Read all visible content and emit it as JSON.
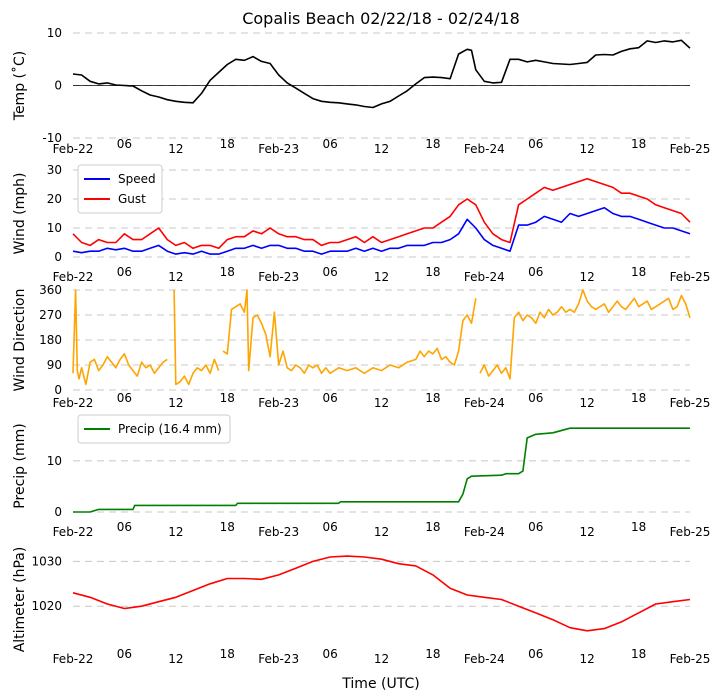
{
  "chart_data": [
    {
      "type": "line",
      "title": "Copalis Beach 02/22/18 - 02/24/18",
      "ylabel": "Temp ($^\\circ$C)",
      "ylabel_display": "Temp (˚C)",
      "ylim": [
        -10,
        10
      ],
      "yticks": [
        -10,
        0,
        10
      ],
      "xlim_hours": [
        0,
        72
      ],
      "xtick_labels": [
        "Feb-22",
        "06",
        "12",
        "18",
        "Feb-23",
        "06",
        "12",
        "18",
        "Feb-24",
        "06",
        "12",
        "18",
        "Feb-25"
      ],
      "zero_line": true,
      "series": [
        {
          "name": "Temp",
          "color": "#000000",
          "x": [
            0,
            1,
            2,
            3,
            4,
            5,
            6,
            7,
            8,
            9,
            10,
            11,
            12,
            13,
            14,
            15,
            16,
            17,
            18,
            19,
            20,
            21,
            22,
            23,
            24,
            25,
            26,
            27,
            28,
            29,
            30,
            31,
            32,
            33,
            34,
            35,
            36,
            37,
            38,
            39,
            40,
            41,
            42,
            43,
            44,
            45,
            46,
            46.5,
            47,
            48,
            49,
            50,
            51,
            52,
            53,
            54,
            55,
            56,
            57,
            58,
            59,
            60,
            61,
            62,
            63,
            64,
            65,
            66,
            67,
            68,
            69,
            70,
            71,
            72
          ],
          "values": [
            2.2,
            2,
            0.8,
            0.3,
            0.5,
            0.1,
            0,
            -0.1,
            -1,
            -1.8,
            -2.2,
            -2.7,
            -3,
            -3.2,
            -3.3,
            -1.5,
            1,
            2.5,
            4,
            5,
            4.8,
            5.5,
            4.6,
            4.2,
            2,
            0.5,
            -0.5,
            -1.5,
            -2.5,
            -3,
            -3.2,
            -3.3,
            -3.5,
            -3.7,
            -4,
            -4.2,
            -3.5,
            -3,
            -2,
            -1,
            0.3,
            1.5,
            1.6,
            1.5,
            1.3,
            6,
            6.9,
            6.7,
            3,
            0.8,
            0.5,
            0.6,
            5,
            5,
            4.5,
            4.8,
            4.5,
            4.2,
            4.1,
            4,
            4.2,
            4.4,
            5.8,
            5.9,
            5.8,
            6.5,
            7,
            7.2,
            8.5,
            8.2,
            8.5,
            8.3,
            8.6,
            7.1
          ]
        }
      ]
    },
    {
      "type": "line",
      "ylabel": "Wind (mph)",
      "ylim": [
        0,
        30
      ],
      "yticks": [
        0,
        10,
        20,
        30
      ],
      "xlim_hours": [
        0,
        72
      ],
      "xtick_labels": [
        "Feb-22",
        "06",
        "12",
        "18",
        "Feb-23",
        "06",
        "12",
        "18",
        "Feb-24",
        "06",
        "12",
        "18",
        "Feb-25"
      ],
      "legend": "top-left",
      "series": [
        {
          "name": "Speed",
          "color": "#0000ff",
          "x": [
            0,
            1,
            2,
            3,
            4,
            5,
            6,
            7,
            8,
            9,
            10,
            11,
            12,
            13,
            14,
            15,
            16,
            17,
            18,
            19,
            20,
            21,
            22,
            23,
            24,
            25,
            26,
            27,
            28,
            29,
            30,
            31,
            32,
            33,
            34,
            35,
            36,
            37,
            38,
            39,
            40,
            41,
            42,
            43,
            44,
            45,
            46,
            47,
            48,
            49,
            50,
            51,
            52,
            53,
            54,
            55,
            56,
            57,
            58,
            59,
            60,
            61,
            62,
            63,
            64,
            65,
            66,
            67,
            68,
            69,
            70,
            71,
            72
          ],
          "values": [
            2,
            1.5,
            2,
            2,
            3,
            2.5,
            3,
            2,
            2,
            3,
            4,
            2,
            1,
            1.5,
            1,
            2,
            1,
            1,
            2,
            3,
            3,
            4,
            3,
            4,
            4,
            3,
            3,
            2,
            2,
            1,
            2,
            2,
            2,
            3,
            2,
            3,
            2,
            3,
            3,
            4,
            4,
            4,
            5,
            5,
            6,
            8,
            13,
            10,
            6,
            4,
            3,
            2,
            11,
            11,
            12,
            14,
            13,
            12,
            15,
            14,
            15,
            16,
            17,
            15,
            14,
            14,
            13,
            12,
            11,
            10,
            10,
            9,
            8
          ]
        },
        {
          "name": "Gust",
          "color": "#ff0000",
          "x": [
            0,
            1,
            2,
            3,
            4,
            5,
            6,
            7,
            8,
            9,
            10,
            11,
            12,
            13,
            14,
            15,
            16,
            17,
            18,
            19,
            20,
            21,
            22,
            23,
            24,
            25,
            26,
            27,
            28,
            29,
            30,
            31,
            32,
            33,
            34,
            35,
            36,
            37,
            38,
            39,
            40,
            41,
            42,
            43,
            44,
            45,
            46,
            47,
            48,
            49,
            50,
            51,
            52,
            53,
            54,
            55,
            56,
            57,
            58,
            59,
            60,
            61,
            62,
            63,
            64,
            65,
            66,
            67,
            68,
            69,
            70,
            71,
            72
          ],
          "values": [
            8,
            5,
            4,
            6,
            5,
            5,
            8,
            6,
            6,
            8,
            10,
            6,
            4,
            5,
            3,
            4,
            4,
            3,
            6,
            7,
            7,
            9,
            8,
            10,
            8,
            7,
            7,
            6,
            6,
            4,
            5,
            5,
            6,
            7,
            5,
            7,
            5,
            6,
            7,
            8,
            9,
            10,
            10,
            12,
            14,
            18,
            20,
            18,
            12,
            8,
            6,
            5,
            18,
            20,
            22,
            24,
            23,
            24,
            25,
            26,
            27,
            26,
            25,
            24,
            22,
            22,
            21,
            20,
            18,
            17,
            16,
            15,
            12
          ]
        }
      ]
    },
    {
      "type": "line",
      "ylabel": "Wind Direction",
      "ylim": [
        0,
        360
      ],
      "yticks": [
        0,
        90,
        180,
        270,
        360
      ],
      "xlim_hours": [
        0,
        72
      ],
      "xtick_labels": [
        "Feb-22",
        "06",
        "12",
        "18",
        "Feb-23",
        "06",
        "12",
        "18",
        "Feb-24",
        "06",
        "12",
        "18",
        "Feb-25"
      ],
      "series": [
        {
          "name": "Wind Direction",
          "color": "#ffa500",
          "segments": [
            {
              "x": [
                0,
                0.3,
                0.5,
                0.7,
                1,
                1.5,
                2,
                2.5,
                3,
                3.5,
                4,
                4.5,
                5,
                5.5,
                6,
                6.5,
                7,
                7.5,
                8,
                8.5,
                9,
                9.5,
                10,
                10.5,
                11
              ],
              "values": [
                60,
                360,
                70,
                40,
                80,
                20,
                100,
                110,
                70,
                90,
                120,
                100,
                80,
                110,
                130,
                90,
                70,
                50,
                100,
                80,
                90,
                60,
                80,
                100,
                110
              ]
            },
            {
              "x": [
                11.8,
                12,
                12.5,
                13,
                13.5,
                14,
                14.5,
                15,
                15.5,
                16,
                16.5,
                17
              ],
              "values": [
                360,
                20,
                30,
                50,
                20,
                60,
                80,
                70,
                90,
                60,
                110,
                70
              ]
            },
            {
              "x": [
                17.5,
                18,
                18.5,
                19,
                19.5,
                20,
                20.3,
                20.5,
                21,
                21.5,
                22,
                22.5,
                23,
                23.5,
                24,
                24.5,
                25,
                25.5,
                26,
                26.5,
                27,
                27.5,
                28,
                28.5,
                29,
                29.5,
                30,
                30.5,
                31,
                32,
                33,
                34,
                35,
                36,
                37,
                38,
                39,
                40,
                40.5,
                41,
                41.5,
                42,
                42.5,
                43,
                43.5,
                44,
                44.5,
                45,
                45.5,
                46,
                46.5,
                47
              ],
              "values": [
                140,
                130,
                290,
                300,
                310,
                280,
                360,
                70,
                260,
                270,
                240,
                200,
                120,
                280,
                90,
                140,
                80,
                70,
                90,
                80,
                60,
                90,
                80,
                90,
                60,
                80,
                60,
                70,
                80,
                70,
                80,
                60,
                80,
                70,
                90,
                80,
                100,
                110,
                140,
                120,
                140,
                130,
                150,
                110,
                120,
                100,
                90,
                140,
                250,
                270,
                240,
                330
              ]
            },
            {
              "x": [
                47.5,
                48,
                48.5,
                49,
                49.5,
                50,
                50.5,
                51,
                51.5,
                52,
                52.5,
                53,
                53.5,
                54,
                54.5,
                55,
                55.5,
                56,
                56.5,
                57,
                57.5,
                58,
                58.5,
                59,
                59.5,
                60,
                60.5,
                61,
                61.5,
                62,
                62.5,
                63,
                63.5,
                64,
                64.5,
                65,
                65.5,
                66,
                66.5,
                67,
                67.5,
                68,
                68.5,
                69,
                69.5,
                70,
                70.5,
                71,
                71.5,
                72
              ],
              "values": [
                60,
                90,
                50,
                70,
                90,
                60,
                80,
                40,
                260,
                280,
                250,
                270,
                260,
                240,
                280,
                260,
                290,
                270,
                280,
                300,
                280,
                290,
                280,
                310,
                360,
                320,
                300,
                290,
                300,
                310,
                280,
                300,
                320,
                300,
                290,
                310,
                330,
                300,
                310,
                320,
                290,
                300,
                310,
                320,
                330,
                290,
                300,
                340,
                310,
                260
              ]
            }
          ]
        }
      ]
    },
    {
      "type": "line",
      "ylabel": "Precip (mm)",
      "ylim": [
        0,
        18
      ],
      "yticks": [
        0,
        10
      ],
      "xlim_hours": [
        0,
        72
      ],
      "xtick_labels": [
        "Feb-22",
        "06",
        "12",
        "18",
        "Feb-23",
        "06",
        "12",
        "18",
        "Feb-24",
        "06",
        "12",
        "18",
        "Feb-25"
      ],
      "legend": "top-left",
      "series": [
        {
          "name": "Precip (16.4 mm)",
          "color": "#008000",
          "x": [
            0,
            2,
            3,
            7,
            7.2,
            19,
            19.2,
            31,
            31.2,
            45,
            45.5,
            46,
            46.5,
            50,
            50.5,
            52,
            52.5,
            53,
            54,
            56,
            58,
            72
          ],
          "values": [
            0,
            0,
            0.5,
            0.5,
            1.3,
            1.3,
            1.7,
            1.7,
            2,
            2,
            3.5,
            6.5,
            7,
            7.2,
            7.5,
            7.5,
            8,
            14.5,
            15.2,
            15.5,
            16.4,
            16.4
          ]
        }
      ]
    },
    {
      "type": "line",
      "ylabel": "Altimeter (hPa)",
      "xlabel": "Time (UTC)",
      "ylim": [
        1010,
        1033
      ],
      "yticks": [
        1020,
        1030
      ],
      "xlim_hours": [
        0,
        72
      ],
      "xtick_labels": [
        "Feb-22",
        "06",
        "12",
        "18",
        "Feb-23",
        "06",
        "12",
        "18",
        "Feb-24",
        "06",
        "12",
        "18",
        "Feb-25"
      ],
      "series": [
        {
          "name": "Altimeter",
          "color": "#ff0000",
          "x": [
            0,
            2,
            4,
            6,
            8,
            10,
            12,
            14,
            16,
            18,
            20,
            22,
            24,
            26,
            28,
            30,
            32,
            34,
            36,
            38,
            40,
            42,
            44,
            46,
            48,
            50,
            52,
            54,
            56,
            58,
            60,
            62,
            64,
            66,
            68,
            70,
            72
          ],
          "values": [
            1023,
            1022,
            1020.5,
            1019.5,
            1020,
            1021,
            1022,
            1023.5,
            1025,
            1026.2,
            1026.2,
            1026,
            1027,
            1028.5,
            1030,
            1031,
            1031.2,
            1031,
            1030.5,
            1029.5,
            1029,
            1027,
            1024,
            1022.5,
            1022,
            1021.5,
            1020,
            1018.5,
            1017,
            1015.2,
            1014.5,
            1015,
            1016.5,
            1018.5,
            1020.5,
            1021,
            1021.5
          ]
        }
      ]
    }
  ]
}
